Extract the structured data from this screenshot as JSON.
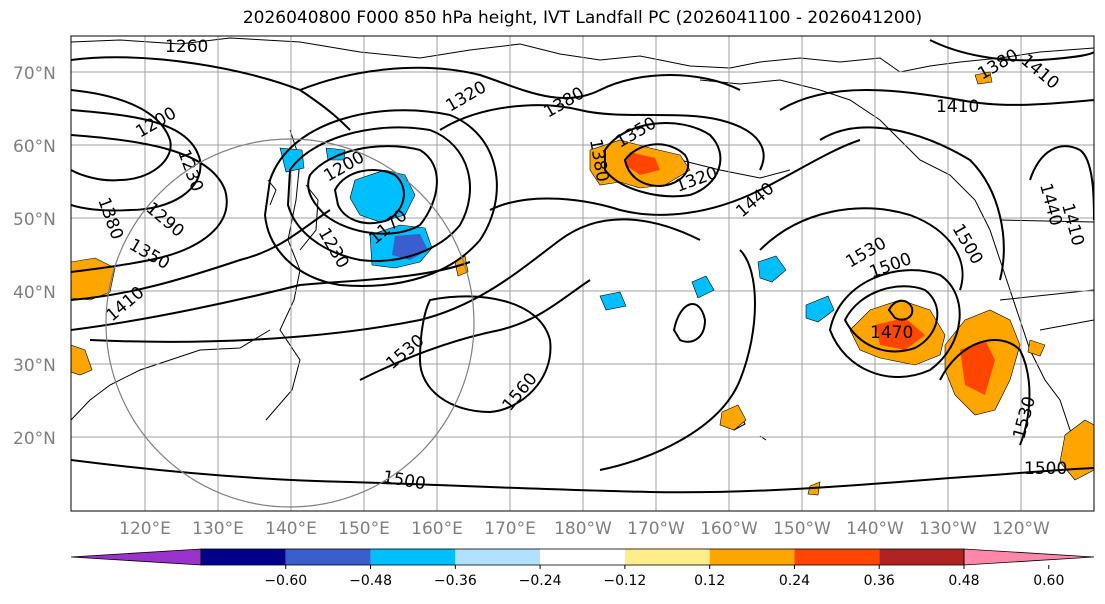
{
  "title": "2026040800 F000 850 hPa height, IVT Landfall PC (2026041100 - 2026041200)",
  "lat_labels": [
    "70°N",
    "60°N",
    "50°N",
    "40°N",
    "30°N",
    "20°N"
  ],
  "lon_labels": [
    "120°E",
    "130°E",
    "140°E",
    "150°E",
    "160°E",
    "170°E",
    "180°W",
    "170°W",
    "160°W",
    "150°W",
    "140°W",
    "130°W",
    "120°W"
  ],
  "colorbar": {
    "colors": [
      "#9933cc",
      "#00008b",
      "#3a5fcd",
      "#00bfff",
      "#b0e2ff",
      "#ffffff",
      "#ffec8b",
      "#ffa500",
      "#ff4500",
      "#b22222",
      "#ff88aa"
    ],
    "ticks": [
      "−0.60",
      "−0.48",
      "−0.36",
      "−0.24",
      "−0.12",
      "0.12",
      "0.24",
      "0.36",
      "0.48",
      "0.60"
    ]
  },
  "contour_labels": [
    "1260",
    "1200",
    "1230",
    "1290",
    "1380",
    "1350",
    "1410",
    "1200",
    "1230",
    "1170",
    "1320",
    "1380",
    "1350",
    "1380",
    "1320",
    "1440",
    "1410",
    "1380",
    "1410",
    "1440",
    "1410",
    "1500",
    "1530",
    "1500",
    "1470",
    "1530",
    "1560",
    "1500",
    "1530",
    "1500"
  ],
  "colors": {
    "positive": "#ffa500",
    "positive_strong": "#ff4500",
    "negative": "#00bfff",
    "negative_strong": "#3a5fcd"
  }
}
